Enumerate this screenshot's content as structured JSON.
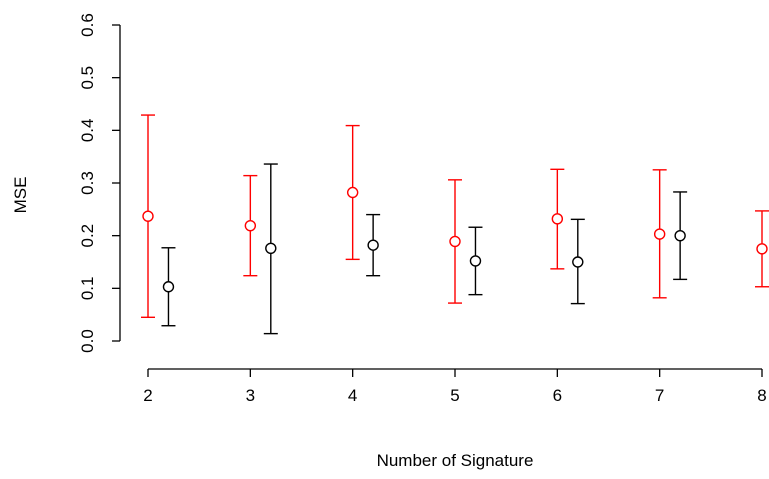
{
  "chart_data": {
    "type": "scatter",
    "xlabel": "Number of Signature",
    "ylabel": "MSE",
    "x_ticks": [
      2,
      3,
      4,
      5,
      6,
      7,
      8
    ],
    "y_ticks": [
      "0.0",
      "0.1",
      "0.2",
      "0.3",
      "0.4",
      "0.5",
      "0.6"
    ],
    "xlim": [
      2,
      8
    ],
    "ylim": [
      0,
      0.6
    ],
    "grid": false,
    "legend": "none",
    "series": [
      {
        "color": "#ff0000",
        "x_offset": 0,
        "points": [
          {
            "x": 2,
            "y": 0.237,
            "low": 0.045,
            "high": 0.429
          },
          {
            "x": 3,
            "y": 0.219,
            "low": 0.124,
            "high": 0.314
          },
          {
            "x": 4,
            "y": 0.282,
            "low": 0.155,
            "high": 0.409
          },
          {
            "x": 5,
            "y": 0.189,
            "low": 0.072,
            "high": 0.306
          },
          {
            "x": 6,
            "y": 0.232,
            "low": 0.137,
            "high": 0.326
          },
          {
            "x": 7,
            "y": 0.203,
            "low": 0.082,
            "high": 0.325
          },
          {
            "x": 8,
            "y": 0.175,
            "low": 0.103,
            "high": 0.247
          }
        ]
      },
      {
        "color": "#000000",
        "x_offset": 0.2,
        "points": [
          {
            "x": 2,
            "y": 0.103,
            "low": 0.029,
            "high": 0.177
          },
          {
            "x": 3,
            "y": 0.176,
            "low": 0.014,
            "high": 0.336
          },
          {
            "x": 4,
            "y": 0.182,
            "low": 0.124,
            "high": 0.24
          },
          {
            "x": 5,
            "y": 0.152,
            "low": 0.088,
            "high": 0.216
          },
          {
            "x": 6,
            "y": 0.15,
            "low": 0.071,
            "high": 0.231
          },
          {
            "x": 7,
            "y": 0.2,
            "low": 0.117,
            "high": 0.283
          }
        ]
      }
    ]
  }
}
